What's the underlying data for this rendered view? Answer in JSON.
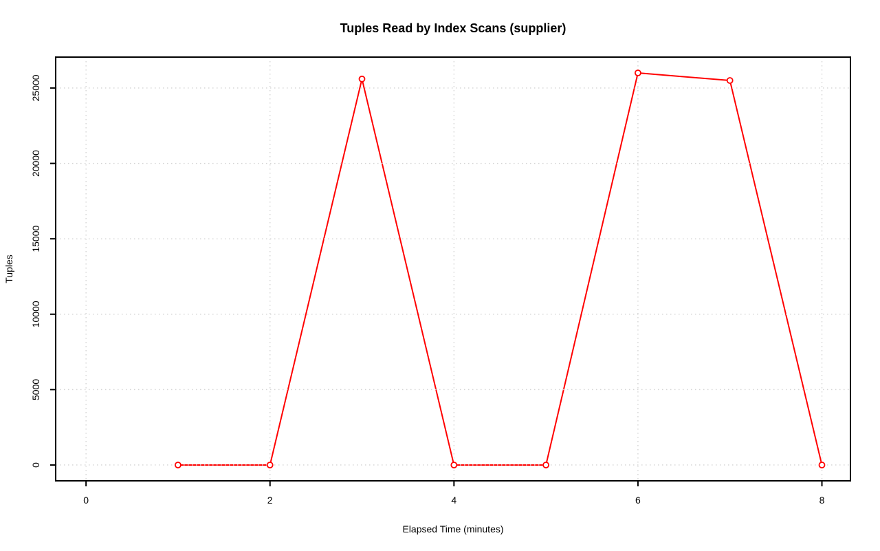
{
  "page": {
    "background": "#ffffff"
  },
  "chart_data": {
    "type": "line",
    "title": "Tuples Read by Index Scans (supplier)",
    "xlabel": "Elapsed Time (minutes)",
    "ylabel": "Tuples",
    "x": [
      1,
      2,
      3,
      4,
      5,
      6,
      7,
      8
    ],
    "y": [
      0,
      0,
      25600,
      0,
      0,
      26000,
      25500,
      0
    ],
    "xticks": [
      0,
      2,
      4,
      6,
      8
    ],
    "yticks": [
      0,
      5000,
      10000,
      15000,
      20000,
      25000
    ],
    "xtick_labels": [
      "0",
      "2",
      "4",
      "6",
      "8"
    ],
    "ytick_labels": [
      "0",
      "5000",
      "10000",
      "15000",
      "20000",
      "25000"
    ],
    "xlim": [
      -0.33,
      8.31
    ],
    "ylim": [
      -1050,
      27050
    ],
    "grid": true,
    "grid_style": "dotted",
    "legend": "none",
    "line_color": "#FF0000",
    "marker": "open-circle",
    "marker_color": "#FF0000",
    "grid_color": "#D3D3D3",
    "axis_color": "#000000",
    "background_color": "#FFFFFF"
  }
}
